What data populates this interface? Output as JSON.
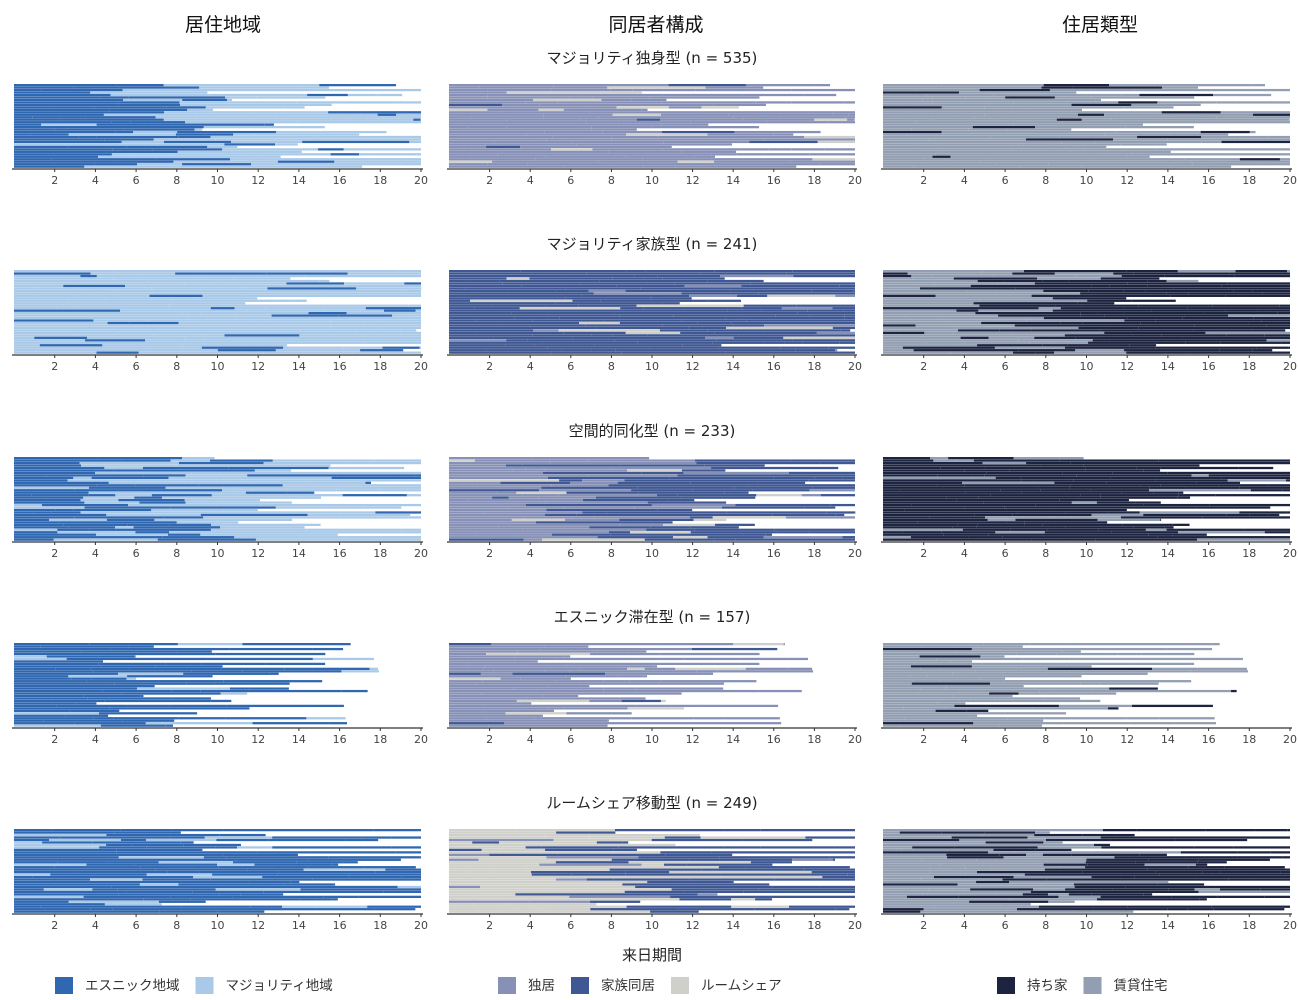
{
  "chart_data": {
    "type": "sequence-index",
    "columns": [
      "居住地域",
      "同居者構成",
      "住居類型"
    ],
    "clusters": [
      {
        "title": "マジョリティ独身型 (n = 535)",
        "n": 535
      },
      {
        "title": "マジョリティ家族型 (n = 241)",
        "n": 241
      },
      {
        "title": "空間的同化型 (n = 233)",
        "n": 233
      },
      {
        "title": "エスニック滞在型 (n = 157)",
        "n": 157
      },
      {
        "title": "ルームシェア移動型 (n = 249)",
        "n": 249
      }
    ],
    "xlabel": "来日期間",
    "xlim": [
      0,
      20
    ],
    "x_ticks": [
      "2",
      "4",
      "6",
      "8",
      "10",
      "12",
      "14",
      "16",
      "18",
      "20"
    ],
    "grid": false,
    "legends": [
      {
        "column": "居住地域",
        "items": [
          {
            "label": "エスニック地域",
            "color": "#2f67b1"
          },
          {
            "label": "マジョリティ地域",
            "color": "#a9c9e9"
          }
        ]
      },
      {
        "column": "同居者構成",
        "items": [
          {
            "label": "独居",
            "color": "#8791b7"
          },
          {
            "label": "家族同居",
            "color": "#3f5893"
          },
          {
            "label": "ルームシェア",
            "color": "#d0d0cb"
          }
        ]
      },
      {
        "column": "住居類型",
        "items": [
          {
            "label": "持ち家",
            "color": "#1d2440"
          },
          {
            "label": "賃貸住宅",
            "color": "#929eb1"
          }
        ]
      }
    ],
    "cluster_tendencies": [
      {
        "居住地域": {
          "early": "エスニック地域",
          "late": "マジョリティ地域"
        },
        "同居者構成": {
          "early": "独居",
          "late": "独居"
        },
        "住居類型": {
          "early": "賃貸住宅",
          "late": "賃貸住宅"
        }
      },
      {
        "居住地域": {
          "early": "マジョリティ地域",
          "late": "マジョリティ地域"
        },
        "同居者構成": {
          "early": "家族同居",
          "late": "家族同居"
        },
        "住居類型": {
          "early": "賃貸住宅",
          "late": "持ち家"
        }
      },
      {
        "居住地域": {
          "early": "エスニック地域",
          "late": "マジョリティ地域"
        },
        "同居者構成": {
          "early": "独居",
          "late": "家族同居"
        },
        "住居類型": {
          "early": "持ち家",
          "late": "持ち家"
        }
      },
      {
        "居住地域": {
          "early": "エスニック地域",
          "late": "エスニック地域"
        },
        "同居者構成": {
          "early": "独居",
          "late": "独居"
        },
        "住居類型": {
          "early": "賃貸住宅",
          "late": "賃貸住宅"
        }
      },
      {
        "居住地域": {
          "early": "エスニック地域",
          "late": "エスニック地域"
        },
        "同居者構成": {
          "early": "ルームシェア",
          "late": "家族同居"
        },
        "住居類型": {
          "early": "賃貸住宅",
          "late": "持ち家"
        }
      }
    ]
  }
}
